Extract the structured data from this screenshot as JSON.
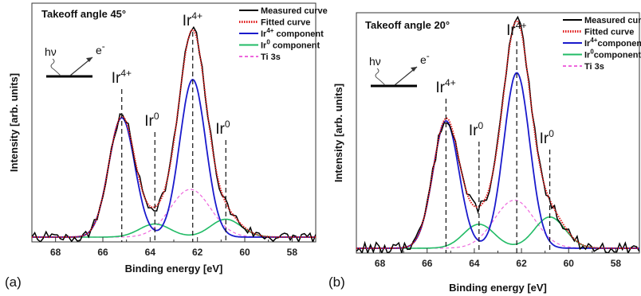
{
  "chart_data": [
    {
      "type": "line",
      "panel_label": "(a)",
      "title": "Takeoff angle 45°",
      "xlabel": "Binding energy [eV]",
      "ylabel": "Intensity [arb. units]",
      "xlim": [
        69,
        57
      ],
      "ylim": [
        0,
        1.0
      ],
      "x_reversed": true,
      "x_ticks": [
        68,
        66,
        64,
        62,
        60,
        58
      ],
      "grid": false,
      "legend_position": "top-right",
      "legend": [
        {
          "label": "Measured curve",
          "color": "#000000",
          "style": "solid"
        },
        {
          "label": "Fitted curve",
          "color": "#e01b1b",
          "style": "dotted"
        },
        {
          "label": "Ir",
          "sup": "4+",
          "suffix": " component",
          "color": "#1a1acc",
          "style": "solid"
        },
        {
          "label": "Ir",
          "sup": "0",
          "suffix": " component",
          "color": "#22bb66",
          "style": "solid"
        },
        {
          "label": "Ti 3s",
          "color": "#ee66dd",
          "style": "dashed"
        }
      ],
      "peak_annotations": [
        {
          "x": 65.2,
          "label": "Ir",
          "sup": "4+"
        },
        {
          "x": 63.8,
          "label": "Ir",
          "sup": "0"
        },
        {
          "x": 62.2,
          "label": "Ir",
          "sup": "4+"
        },
        {
          "x": 60.8,
          "label": "Ir",
          "sup": "0"
        }
      ],
      "inset": {
        "photon": "hν",
        "electron": "e",
        "electron_sup": "-"
      },
      "components": {
        "ir4": {
          "peaks": [
            {
              "center": 65.2,
              "height": 0.5,
              "width": 0.55
            },
            {
              "center": 62.2,
              "height": 0.66,
              "width": 0.55
            }
          ]
        },
        "ir0": {
          "peaks": [
            {
              "center": 63.8,
              "height": 0.055,
              "width": 0.65
            },
            {
              "center": 60.8,
              "height": 0.075,
              "width": 0.65
            }
          ]
        },
        "ti3s": {
          "peaks": [
            {
              "center": 62.3,
              "height": 0.2,
              "width": 0.85
            }
          ]
        },
        "baseline": 0.02
      },
      "measured_noise_seed": 7
    },
    {
      "type": "line",
      "panel_label": "(b)",
      "title": "Takeoff angle 20°",
      "xlabel": "Binding energy [eV]",
      "ylabel": "Intensity [arb. units]",
      "xlim": [
        69,
        57
      ],
      "ylim": [
        0,
        1.0
      ],
      "x_reversed": true,
      "x_ticks": [
        68,
        66,
        64,
        62,
        60,
        58
      ],
      "grid": false,
      "legend_position": "top-right",
      "legend": [
        {
          "label": "Measured curve",
          "color": "#000000",
          "style": "solid"
        },
        {
          "label": "Fitted curve",
          "color": "#e01b1b",
          "style": "dotted"
        },
        {
          "label": "Ir",
          "sup": "4+",
          "suffix": "component",
          "color": "#1a1acc",
          "style": "solid"
        },
        {
          "label": "Ir",
          "sup": "0",
          "suffix": "component",
          "color": "#22bb66",
          "style": "solid"
        },
        {
          "label": "Ti 3s",
          "color": "#ee66dd",
          "style": "dashed"
        }
      ],
      "peak_annotations": [
        {
          "x": 65.2,
          "label": "Ir",
          "sup": "4+"
        },
        {
          "x": 63.8,
          "label": "Ir",
          "sup": "0"
        },
        {
          "x": 62.2,
          "label": "Ir",
          "sup": "4+"
        },
        {
          "x": 60.8,
          "label": "Ir",
          "sup": "0"
        }
      ],
      "inset": {
        "photon": "hν",
        "electron": "e",
        "electron_sup": "-"
      },
      "components": {
        "ir4": {
          "peaks": [
            {
              "center": 65.2,
              "height": 0.53,
              "width": 0.55
            },
            {
              "center": 62.2,
              "height": 0.73,
              "width": 0.55
            }
          ]
        },
        "ir0": {
          "peaks": [
            {
              "center": 63.8,
              "height": 0.1,
              "width": 0.65
            },
            {
              "center": 60.8,
              "height": 0.13,
              "width": 0.65
            }
          ]
        },
        "ti3s": {
          "peaks": [
            {
              "center": 62.3,
              "height": 0.2,
              "width": 0.85
            }
          ]
        },
        "baseline": 0.02
      },
      "measured_noise_seed": 13
    }
  ]
}
